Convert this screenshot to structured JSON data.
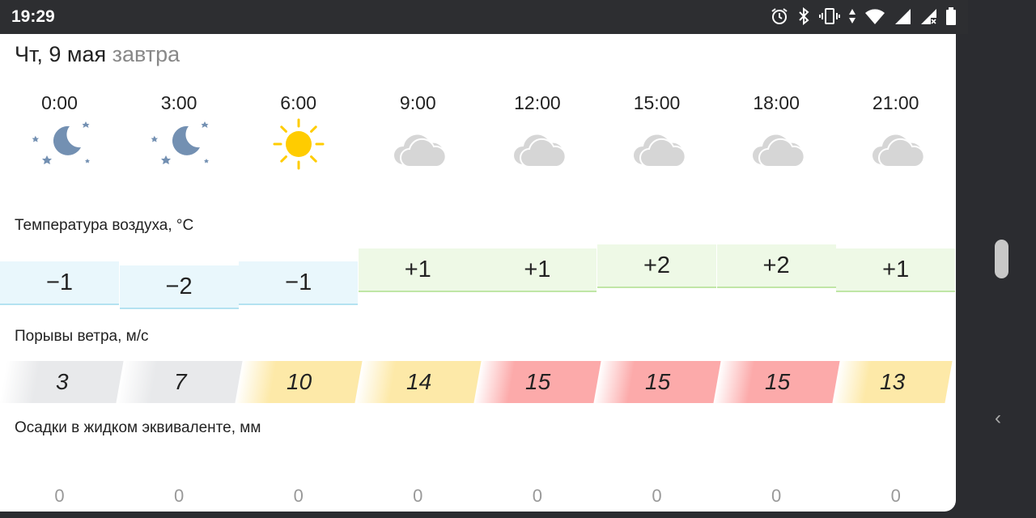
{
  "status_bar": {
    "time": "19:29",
    "icons": [
      "alarm-icon",
      "bluetooth-icon",
      "vibrate-icon",
      "data-arrows-icon",
      "wifi-icon",
      "signal-icon",
      "signal-no-sim-icon",
      "battery-icon"
    ]
  },
  "header": {
    "date": "Чт, 9 мая",
    "relative": "завтра"
  },
  "hours": [
    "0:00",
    "3:00",
    "6:00",
    "9:00",
    "12:00",
    "15:00",
    "18:00",
    "21:00"
  ],
  "conditions": [
    "night-clear",
    "night-clear",
    "sunny",
    "cloudy",
    "cloudy",
    "cloudy",
    "cloudy",
    "cloudy-night"
  ],
  "temperature": {
    "label": "Температура воздуха, °C",
    "values": [
      "−1",
      "−2",
      "−1",
      "+1",
      "+1",
      "+2",
      "+2",
      "+1"
    ],
    "numeric": [
      -1,
      -2,
      -1,
      1,
      1,
      2,
      2,
      1
    ]
  },
  "wind": {
    "label": "Порывы ветра, м/с",
    "values": [
      "3",
      "7",
      "10",
      "14",
      "15",
      "15",
      "15",
      "13"
    ]
  },
  "precipitation": {
    "label": "Осадки в жидком эквиваленте, мм",
    "values": [
      "0",
      "0",
      "0",
      "0",
      "0",
      "0",
      "0",
      "0"
    ]
  },
  "colors": {
    "cold": "#e9f7fc",
    "warm": "#eef9e6",
    "wind_low": "#e8e9eb",
    "wind_mid": "#fde9a8",
    "wind_high": "#fcaaaa"
  }
}
